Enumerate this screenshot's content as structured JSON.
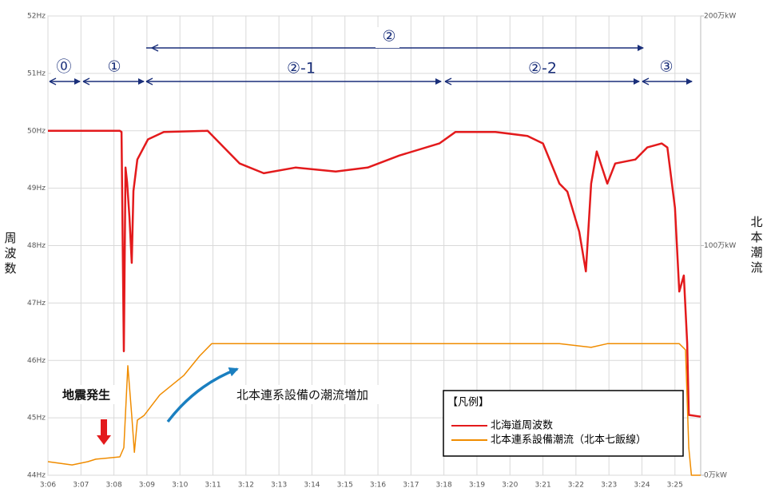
{
  "chart_data": {
    "type": "line",
    "y_label": "周波数",
    "y2_label": "北本潮流",
    "xlim": [
      6,
      25.78
    ],
    "xticks": [
      {
        "value": 6,
        "label": "3:06"
      },
      {
        "value": 7,
        "label": "3:07"
      },
      {
        "value": 8,
        "label": "3:08"
      },
      {
        "value": 9,
        "label": "3:09"
      },
      {
        "value": 10,
        "label": "3:10"
      },
      {
        "value": 11,
        "label": "3:11"
      },
      {
        "value": 12,
        "label": "3:12"
      },
      {
        "value": 13,
        "label": "3:13"
      },
      {
        "value": 14,
        "label": "3:14"
      },
      {
        "value": 15,
        "label": "3:15"
      },
      {
        "value": 16,
        "label": "3:16"
      },
      {
        "value": 17,
        "label": "3:17"
      },
      {
        "value": 18,
        "label": "3:18"
      },
      {
        "value": 19,
        "label": "3:19"
      },
      {
        "value": 20,
        "label": "3:20"
      },
      {
        "value": 21,
        "label": "3:21"
      },
      {
        "value": 22,
        "label": "3:22"
      },
      {
        "value": 23,
        "label": "3:23"
      },
      {
        "value": 24,
        "label": "3:24"
      },
      {
        "value": 25,
        "label": "3:25"
      }
    ],
    "ylim": [
      44,
      52
    ],
    "yticks": [
      {
        "value": 44,
        "label": "44Hz"
      },
      {
        "value": 45,
        "label": "45Hz"
      },
      {
        "value": 46,
        "label": "46Hz"
      },
      {
        "value": 47,
        "label": "47Hz"
      },
      {
        "value": 48,
        "label": "48Hz"
      },
      {
        "value": 49,
        "label": "49Hz"
      },
      {
        "value": 50,
        "label": "50Hz"
      },
      {
        "value": 51,
        "label": "51Hz"
      },
      {
        "value": 52,
        "label": "52Hz"
      }
    ],
    "y2lim": [
      0,
      200
    ],
    "y2ticks": [
      {
        "value": 0,
        "label": "0万kW"
      },
      {
        "value": 100,
        "label": "100万kW"
      },
      {
        "value": 200,
        "label": "200万kW"
      }
    ],
    "grid": true,
    "legend_title": "【凡例】",
    "series": [
      {
        "name": "北海道周波数",
        "color": "#e31a1c",
        "x": [
          6.0,
          8.18,
          8.23,
          8.3,
          8.35,
          8.4,
          8.47,
          8.54,
          8.59,
          8.71,
          9.03,
          9.51,
          10.84,
          11.81,
          12.54,
          13.5,
          14.72,
          15.69,
          16.65,
          17.86,
          18.35,
          19.56,
          20.53,
          21.0,
          21.5,
          21.74,
          22.1,
          22.3,
          22.46,
          22.63,
          22.95,
          23.19,
          23.8,
          24.16,
          24.6,
          24.77,
          25.0,
          25.13,
          25.27,
          25.37,
          25.42,
          25.78
        ],
        "values": [
          50.0,
          50.0,
          49.98,
          46.16,
          49.36,
          49.1,
          48.5,
          47.7,
          48.95,
          49.5,
          49.85,
          49.98,
          50.0,
          49.43,
          49.26,
          49.36,
          49.29,
          49.36,
          49.57,
          49.78,
          49.98,
          49.98,
          49.91,
          49.78,
          49.08,
          48.94,
          48.24,
          47.55,
          49.08,
          49.64,
          49.08,
          49.43,
          49.5,
          49.71,
          49.78,
          49.71,
          48.66,
          47.2,
          47.48,
          46.3,
          45.05,
          45.02
        ]
      },
      {
        "name": "北本連系設備潮流（北本七飯線）",
        "color": "#f08c00",
        "axis": "y2",
        "x": [
          6.0,
          6.73,
          7.21,
          7.45,
          8.18,
          8.3,
          8.42,
          8.54,
          8.62,
          8.71,
          8.91,
          9.39,
          10.12,
          10.6,
          10.96,
          19.32,
          21.5,
          22.46,
          22.95,
          25.13,
          25.32,
          25.42,
          25.5,
          25.78
        ],
        "values": [
          5.9,
          4.5,
          5.9,
          7,
          8,
          12,
          47.7,
          26,
          10,
          24,
          26,
          35,
          43.5,
          52,
          57.3,
          57.3,
          57.3,
          55.7,
          57.3,
          57.3,
          54.6,
          12,
          0,
          0
        ]
      }
    ],
    "annotations": {
      "phases": [
        "⓪",
        "①",
        "②",
        "②-1",
        "②-2",
        "③"
      ],
      "earthquake": "地震発生",
      "flow_increase": "北本連系設備の潮流増加"
    }
  }
}
